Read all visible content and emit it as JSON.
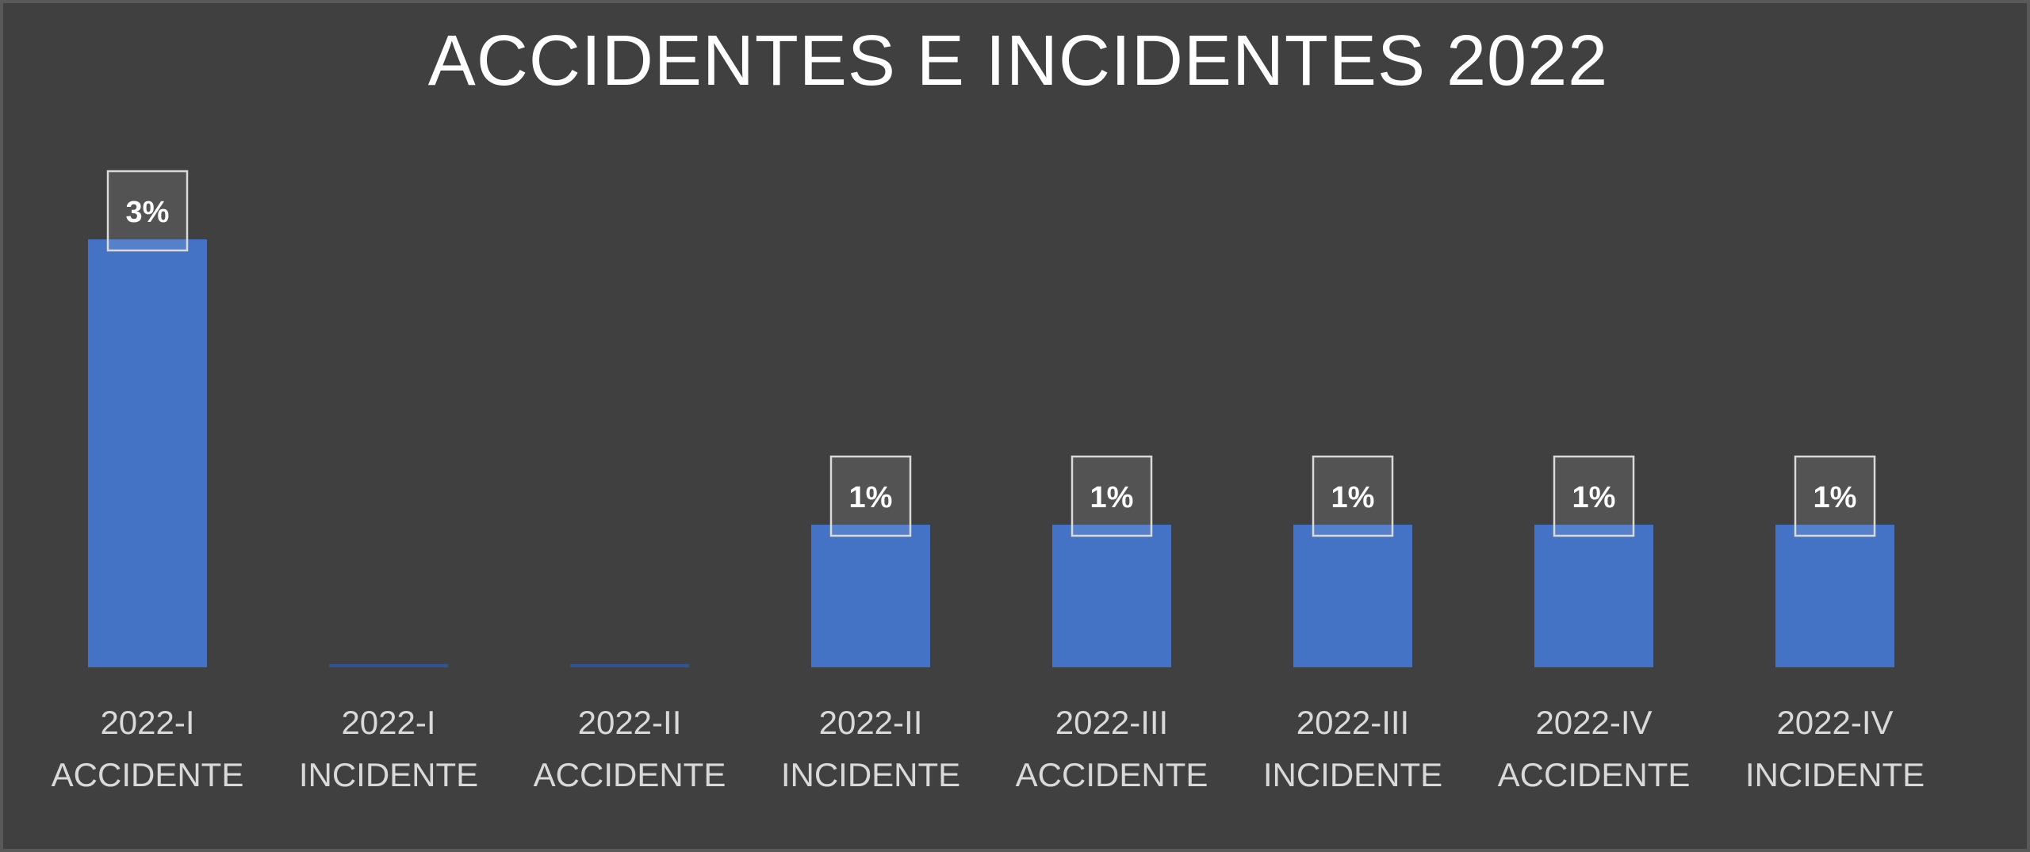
{
  "chart_data": {
    "type": "bar",
    "title": "ACCIDENTES E INCIDENTES 2022",
    "categories": [
      [
        "2022-I",
        "ACCIDENTE"
      ],
      [
        "2022-I",
        "INCIDENTE"
      ],
      [
        "2022-II",
        "ACCIDENTE"
      ],
      [
        "2022-II",
        "INCIDENTE"
      ],
      [
        "2022-III",
        "ACCIDENTE"
      ],
      [
        "2022-III",
        "INCIDENTE"
      ],
      [
        "2022-IV",
        "ACCIDENTE"
      ],
      [
        "2022-IV",
        "INCIDENTE"
      ]
    ],
    "values": [
      3,
      0,
      0,
      1,
      1,
      1,
      1,
      1
    ],
    "data_labels": [
      "3%",
      "",
      "",
      "1%",
      "1%",
      "1%",
      "1%",
      "1%"
    ],
    "unit": "%",
    "ylim": [
      0,
      3.6
    ],
    "grid": false,
    "legend": "none",
    "colors": {
      "background": "#404040",
      "bar": "#4472c4",
      "text": "#ffffff",
      "axis_text": "#d9d9d9"
    }
  }
}
